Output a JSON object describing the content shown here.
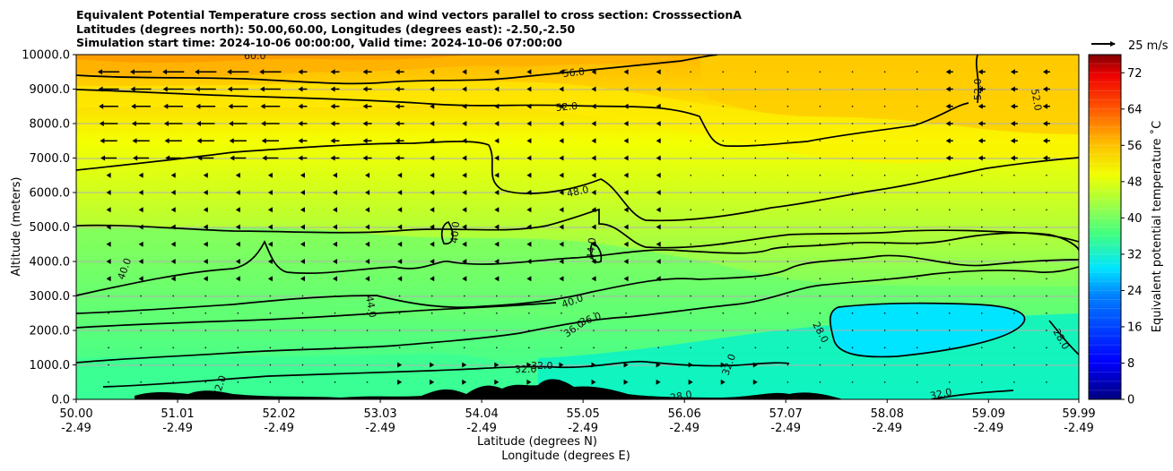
{
  "title_lines": [
    "Equivalent Potential Temperature cross section and wind vectors parallel to cross section: CrosssectionA",
    "Latitudes (degrees north): 50.00,60.00, Longitudes (degrees east): -2.50,-2.50",
    "Simulation start time: 2024-10-06 00:00:00, Valid time: 2024-10-06 07:00:00"
  ],
  "chart_data": {
    "type": "heatmap",
    "subtype": "vertical cross section with contours and wind vectors",
    "title": "Equivalent Potential Temperature cross section and wind vectors parallel to cross section: CrosssectionA",
    "ylabel": "Altitude (meters)",
    "xlabel_lines": [
      "Latitude (degrees N)",
      "Longitude (degrees E)"
    ],
    "ylim": [
      0,
      10000
    ],
    "yticks": [
      "0.0",
      "1000.0",
      "2000.0",
      "3000.0",
      "4000.0",
      "5000.0",
      "6000.0",
      "7000.0",
      "8000.0",
      "9000.0",
      "10000.0"
    ],
    "ytick_values": [
      0,
      1000,
      2000,
      3000,
      4000,
      5000,
      6000,
      7000,
      8000,
      9000,
      10000
    ],
    "xlim": [
      50.0,
      59.99
    ],
    "xtick_lat": [
      "50.00",
      "51.01",
      "52.02",
      "53.03",
      "54.04",
      "55.05",
      "56.06",
      "57.07",
      "58.08",
      "59.09",
      "59.99"
    ],
    "xtick_lon": [
      "-2.49",
      "-2.49",
      "-2.49",
      "-2.49",
      "-2.49",
      "-2.49",
      "-2.49",
      "-2.49",
      "-2.49",
      "-2.49",
      "-2.49"
    ],
    "xtick_values": [
      50.0,
      51.01,
      52.02,
      53.03,
      54.04,
      55.05,
      56.06,
      57.07,
      58.08,
      59.09,
      59.99
    ],
    "colorbar": {
      "label": "Equivalent potential temperature $^\\circ$C",
      "label_text": "Equivalent potential temperature ˚C",
      "range": [
        0,
        76
      ],
      "ticks": [
        "0",
        "8",
        "16",
        "24",
        "32",
        "40",
        "48",
        "56",
        "64",
        "72"
      ],
      "tick_values": [
        0,
        8,
        16,
        24,
        32,
        40,
        48,
        56,
        64,
        72
      ]
    },
    "quiver_key": {
      "label": "25 m/s",
      "speed": 25
    },
    "contour_labels": [
      "56.0",
      "52.0",
      "52.0",
      "52.0",
      "48.0",
      "44.0",
      "40.0",
      "40.0",
      "40.0",
      "36.0",
      "36.0",
      "32.0",
      "32.0",
      "28.0",
      "28.0",
      "32.0",
      "32.0",
      "32.0",
      "28.0",
      "44.0",
      "60.0"
    ],
    "contour_levels": [
      28,
      32,
      36,
      40,
      44,
      48,
      52,
      56,
      60
    ],
    "colors": {
      "terrain": "#000000",
      "cold": "#00e5ff",
      "cool": "#38ff96",
      "mild": "#9aff50",
      "warm": "#d8ff1c",
      "yellow": "#ffee00",
      "orange": "#ffb000",
      "hot": "#ff8c00",
      "grid": "#b0b0b0"
    }
  }
}
